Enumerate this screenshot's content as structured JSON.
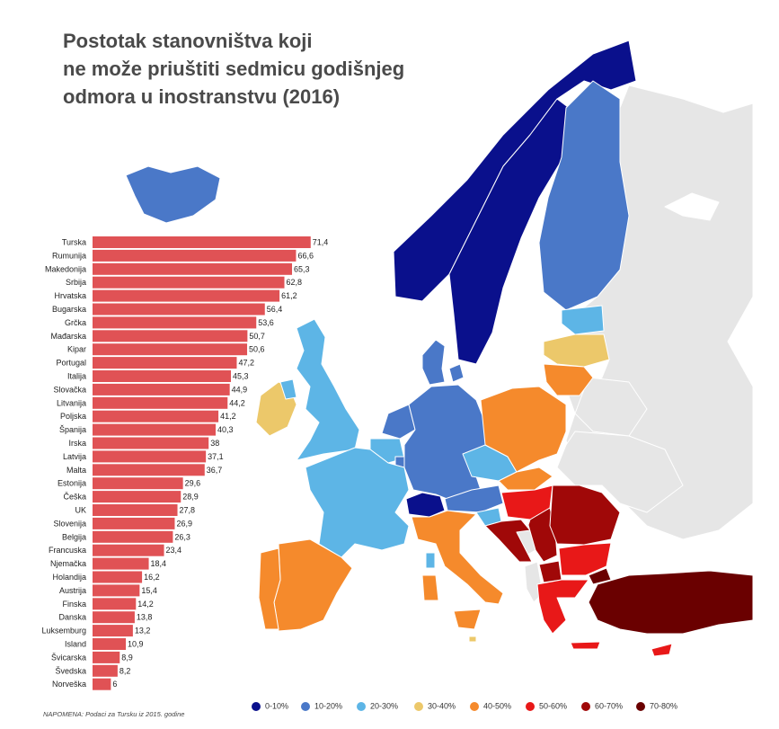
{
  "title_lines": [
    "Postotak stanovništva koji",
    "ne može priuštiti sedmicu godišnjeg",
    "odmora u inostranstvu (2016)"
  ],
  "note": "NAPOMENA: Podaci za Tursku iz 2015. godine",
  "colors": {
    "bar": "#e05255",
    "c0_10": "#0a108c",
    "c10_20": "#4a78c8",
    "c20_30": "#5db5e6",
    "c30_40": "#ecc86a",
    "c40_50": "#f58a2c",
    "c50_60": "#e81818",
    "c60_70": "#a00808",
    "c70_80": "#6a0000",
    "nodata": "#e6e6e6"
  },
  "legend": [
    {
      "label": "0-10%",
      "color": "#0a108c"
    },
    {
      "label": "10-20%",
      "color": "#4a78c8"
    },
    {
      "label": "20-30%",
      "color": "#5db5e6"
    },
    {
      "label": "30-40%",
      "color": "#ecc86a"
    },
    {
      "label": "40-50%",
      "color": "#f58a2c"
    },
    {
      "label": "50-60%",
      "color": "#e81818"
    },
    {
      "label": "60-70%",
      "color": "#a00808"
    },
    {
      "label": "70-80%",
      "color": "#6a0000"
    }
  ],
  "chart_data": {
    "type": "bar",
    "orientation": "horizontal",
    "categories": [
      "Turska",
      "Rumunija",
      "Makedonija",
      "Srbija",
      "Hrvatska",
      "Bugarska",
      "Grčka",
      "Mađarska",
      "Kipar",
      "Portugal",
      "Italija",
      "Slovačka",
      "Litvanija",
      "Poljska",
      "Španija",
      "Irska",
      "Latvija",
      "Malta",
      "Estonija",
      "Češka",
      "UK",
      "Slovenija",
      "Belgija",
      "Francuska",
      "Njemačka",
      "Holandija",
      "Austrija",
      "Finska",
      "Danska",
      "Luksemburg",
      "Island",
      "Švicarska",
      "Švedska",
      "Norveška"
    ],
    "values": [
      71.4,
      66.6,
      65.3,
      62.8,
      61.2,
      56.4,
      53.6,
      50.7,
      50.6,
      47.2,
      45.3,
      44.9,
      44.2,
      41.2,
      40.3,
      38,
      37.1,
      36.7,
      29.6,
      28.9,
      27.8,
      26.9,
      26.3,
      23.4,
      18.4,
      16.2,
      15.4,
      14.2,
      13.8,
      13.2,
      10.9,
      8.9,
      8.2,
      6
    ],
    "value_labels": [
      "71,4",
      "66,6",
      "65,3",
      "62,8",
      "61,2",
      "56,4",
      "53,6",
      "50,7",
      "50,6",
      "47,2",
      "45,3",
      "44,9",
      "44,2",
      "41,2",
      "40,3",
      "38",
      "37,1",
      "36,7",
      "29,6",
      "28,9",
      "27,8",
      "26,9",
      "26,3",
      "23,4",
      "18,4",
      "16,2",
      "15,4",
      "14,2",
      "13,8",
      "13,2",
      "10,9",
      "8,9",
      "8,2",
      "6"
    ],
    "xlim": [
      0,
      80
    ],
    "grid": false,
    "legend_position": "bottom"
  }
}
